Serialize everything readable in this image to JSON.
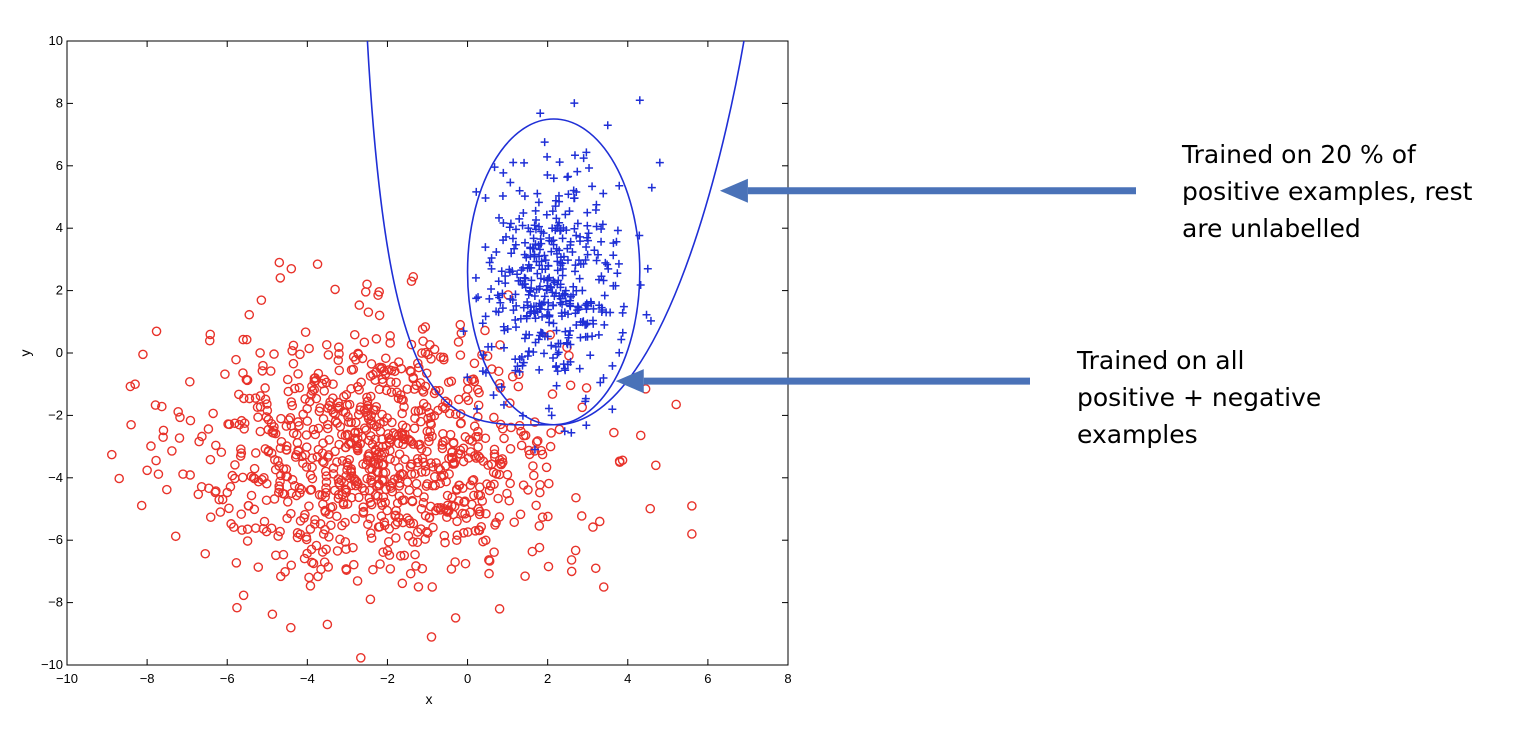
{
  "chart_data": {
    "type": "scatter",
    "xlabel": "x",
    "ylabel": "y",
    "xlim": [
      -10,
      8
    ],
    "ylim": [
      -10,
      10
    ],
    "xticks": [
      -10,
      -8,
      -6,
      -4,
      -2,
      0,
      2,
      4,
      6,
      8
    ],
    "yticks": [
      -10,
      -8,
      -6,
      -4,
      -2,
      0,
      2,
      4,
      6,
      8,
      10
    ],
    "grid": false,
    "series": [
      {
        "marker": "circle",
        "color": "#e8322a",
        "center": [
          -2.2,
          -3.2
        ],
        "spread": [
          2.3,
          2.0
        ],
        "count": 950,
        "outliers": [
          [
            -8.4,
            -2.3
          ],
          [
            -8.3,
            -1.0
          ],
          [
            -7.6,
            -2.7
          ],
          [
            -6.2,
            -4.7
          ],
          [
            5.6,
            -4.9
          ],
          [
            5.6,
            -5.8
          ],
          [
            4.7,
            -3.6
          ],
          [
            3.8,
            -3.5
          ],
          [
            -0.9,
            -9.1
          ],
          [
            -3.5,
            -8.7
          ],
          [
            -4.7,
            2.9
          ],
          [
            -4.4,
            2.7
          ],
          [
            -1.4,
            2.3
          ],
          [
            0.8,
            -8.2
          ],
          [
            3.3,
            -5.4
          ],
          [
            2.6,
            -7.0
          ],
          [
            3.2,
            -6.9
          ],
          [
            3.4,
            -7.5
          ]
        ]
      },
      {
        "marker": "plus",
        "color": "#1f2fd6",
        "center": [
          2.1,
          2.2
        ],
        "spread": [
          0.85,
          1.75
        ],
        "count": 420,
        "outliers": [
          [
            4.3,
            8.1
          ],
          [
            3.5,
            7.3
          ],
          [
            4.8,
            6.1
          ],
          [
            4.6,
            5.3
          ],
          [
            1.3,
            5.2
          ],
          [
            4.5,
            2.7
          ],
          [
            -0.1,
            0.7
          ],
          [
            2.1,
            -2.0
          ]
        ]
      }
    ],
    "curves": [
      {
        "shape": "ellipse",
        "color": "#1f2fd6",
        "center": [
          2.15,
          2.6
        ],
        "radii": [
          2.15,
          4.9
        ]
      },
      {
        "shape": "parabola",
        "color": "#1f2fd6",
        "vertex": [
          2.2,
          -2.3
        ],
        "points": [
          [
            -2.5,
            10
          ],
          [
            6.9,
            10
          ]
        ]
      }
    ],
    "annotations": [
      {
        "lines": [
          "Trained on 20 % of",
          "positive examples, rest",
          "are unlabelled"
        ],
        "arrow_target": [
          6.3,
          5.2
        ]
      },
      {
        "lines": [
          "Trained on all",
          "positive + negative",
          "examples"
        ],
        "arrow_target": [
          3.7,
          -0.9
        ]
      }
    ],
    "arrow_color": "#4a72b8"
  }
}
